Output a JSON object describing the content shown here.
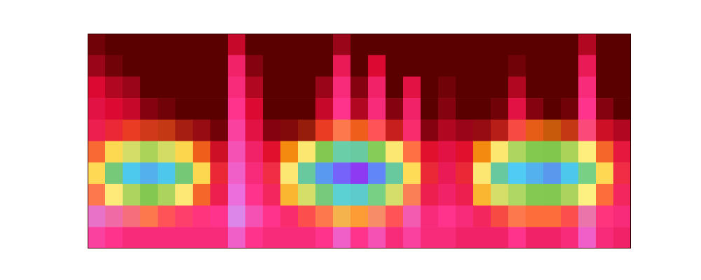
{
  "chart_data": {
    "type": "heatmap",
    "tick_labels": false,
    "spectrogram": [
      [
        0.05,
        0,
        0,
        0,
        0,
        0,
        0,
        0,
        0.25,
        0,
        0,
        0,
        0,
        0,
        0.15,
        0,
        0,
        0,
        0,
        0,
        0,
        0,
        0,
        0,
        0,
        0,
        0,
        0,
        0.2,
        0,
        0
      ],
      [
        0.15,
        0.05,
        0,
        0,
        0,
        0,
        0,
        0,
        0.45,
        0.1,
        0,
        0,
        0,
        0,
        0.4,
        0,
        0.3,
        0,
        0,
        0,
        0,
        0,
        0,
        0,
        0.05,
        0,
        0,
        0,
        0.4,
        0,
        0
      ],
      [
        0.3,
        0.2,
        0.15,
        0,
        0,
        0,
        0,
        0,
        0.5,
        0.2,
        0,
        0,
        0,
        0.15,
        0.5,
        0.1,
        0.45,
        0,
        0.35,
        0,
        0.05,
        0,
        0,
        0,
        0.2,
        0,
        0,
        0,
        0.5,
        0,
        0
      ],
      [
        0.35,
        0.3,
        0.25,
        0.1,
        0.05,
        0,
        0,
        0,
        0.55,
        0.3,
        0,
        0,
        0,
        0.25,
        0.55,
        0.2,
        0.5,
        0.1,
        0.45,
        0,
        0.1,
        0,
        0,
        0.05,
        0.35,
        0.1,
        0,
        0.05,
        0.55,
        0.1,
        0
      ],
      [
        0.4,
        0.35,
        0.3,
        0.2,
        0.15,
        0.1,
        0.1,
        0.05,
        0.6,
        0.35,
        0.1,
        0.05,
        0.05,
        0.3,
        0.6,
        0.3,
        0.55,
        0.2,
        0.5,
        0.1,
        0.2,
        0.15,
        0.1,
        0.15,
        0.45,
        0.25,
        0.1,
        0.15,
        0.6,
        0.25,
        0.2
      ],
      [
        0.45,
        0.4,
        0.35,
        0.3,
        0.3,
        0.3,
        0.3,
        0.25,
        0.65,
        0.45,
        0.3,
        0.3,
        0.3,
        0.4,
        0.65,
        0.45,
        0.6,
        0.35,
        0.55,
        0.3,
        0.35,
        0.3,
        0.3,
        0.3,
        0.5,
        0.35,
        0.3,
        0.3,
        0.65,
        0.4,
        0.35
      ],
      [
        0.5,
        0.45,
        0.4,
        0.35,
        0.35,
        0.35,
        0.35,
        0.35,
        0.7,
        0.5,
        0.4,
        0.35,
        0.35,
        0.45,
        0.7,
        0.5,
        0.65,
        0.4,
        0.6,
        0.35,
        0.4,
        0.35,
        0.35,
        0.35,
        0.55,
        0.4,
        0.35,
        0.35,
        0.7,
        0.45,
        0.4
      ],
      [
        0.6,
        0.5,
        0.45,
        0.4,
        0.4,
        0.4,
        0.4,
        0.4,
        0.75,
        0.55,
        0.45,
        0.4,
        0.4,
        0.5,
        0.75,
        0.55,
        0.7,
        0.45,
        0.65,
        0.4,
        0.45,
        0.4,
        0.4,
        0.4,
        0.6,
        0.45,
        0.4,
        0.4,
        0.75,
        0.5,
        0.45
      ],
      [
        0.8,
        0.75,
        0.7,
        0.6,
        0.55,
        0.55,
        0.55,
        0.55,
        0.85,
        0.65,
        0.55,
        0.5,
        0.5,
        0.6,
        0.85,
        0.6,
        0.75,
        0.55,
        0.7,
        0.5,
        0.55,
        0.5,
        0.45,
        0.45,
        0.6,
        0.5,
        0.5,
        0.5,
        0.8,
        0.55,
        0.5
      ],
      [
        0.6,
        0.55,
        0.5,
        0.5,
        0.5,
        0.5,
        0.5,
        0.5,
        0.7,
        0.55,
        0.5,
        0.5,
        0.5,
        0.55,
        0.7,
        0.55,
        0.65,
        0.5,
        0.6,
        0.5,
        0.5,
        0.45,
        0.45,
        0.45,
        0.55,
        0.45,
        0.45,
        0.5,
        0.7,
        0.5,
        0.45
      ]
    ],
    "attention": [
      [
        0,
        0,
        0,
        0,
        0,
        0,
        0,
        0,
        0,
        0,
        0,
        0,
        0,
        0,
        0,
        0,
        0,
        0,
        0,
        0,
        0,
        0,
        0,
        0,
        0,
        0,
        0,
        0,
        0,
        0,
        0
      ],
      [
        0,
        0,
        0,
        0,
        0,
        0,
        0,
        0,
        0,
        0,
        0,
        0,
        0,
        0,
        0,
        0,
        0,
        0,
        0,
        0,
        0,
        0,
        0,
        0,
        0,
        0,
        0,
        0,
        0,
        0,
        0
      ],
      [
        0,
        0,
        0,
        0,
        0,
        0,
        0,
        0,
        0,
        0,
        0,
        0,
        0,
        0,
        0,
        0,
        0,
        0,
        0,
        0,
        0,
        0,
        0,
        0,
        0,
        0,
        0,
        0,
        0,
        0,
        0
      ],
      [
        0,
        0,
        0,
        0,
        0,
        0,
        0,
        0,
        0,
        0,
        0,
        0,
        0,
        0,
        0,
        0,
        0,
        0,
        0,
        0,
        0,
        0,
        0,
        0,
        0,
        0,
        0,
        0,
        0,
        0,
        0
      ],
      [
        0.05,
        0.1,
        0.15,
        0.15,
        0.15,
        0.1,
        0.05,
        0,
        0,
        0,
        0,
        0.05,
        0.1,
        0.15,
        0.2,
        0.2,
        0.15,
        0.1,
        0.05,
        0,
        0,
        0,
        0.05,
        0.1,
        0.15,
        0.2,
        0.2,
        0.15,
        0.1,
        0.05,
        0
      ],
      [
        0.2,
        0.35,
        0.45,
        0.5,
        0.45,
        0.35,
        0.2,
        0.05,
        0,
        0,
        0.05,
        0.25,
        0.4,
        0.55,
        0.65,
        0.65,
        0.55,
        0.4,
        0.2,
        0.05,
        0,
        0.05,
        0.25,
        0.4,
        0.5,
        0.55,
        0.55,
        0.5,
        0.4,
        0.2,
        0.05
      ],
      [
        0.35,
        0.6,
        0.75,
        0.8,
        0.75,
        0.6,
        0.35,
        0.1,
        0,
        0,
        0.1,
        0.4,
        0.65,
        0.85,
        0.95,
        1,
        0.9,
        0.65,
        0.35,
        0.1,
        0,
        0.1,
        0.4,
        0.65,
        0.75,
        0.8,
        0.85,
        0.75,
        0.6,
        0.35,
        0.1
      ],
      [
        0.2,
        0.4,
        0.5,
        0.55,
        0.5,
        0.4,
        0.2,
        0.05,
        0,
        0,
        0.05,
        0.3,
        0.45,
        0.6,
        0.7,
        0.7,
        0.6,
        0.45,
        0.2,
        0.05,
        0,
        0.05,
        0.3,
        0.45,
        0.5,
        0.55,
        0.55,
        0.5,
        0.4,
        0.2,
        0.05
      ],
      [
        0.05,
        0.1,
        0.15,
        0.2,
        0.15,
        0.1,
        0.05,
        0,
        0,
        0,
        0,
        0.05,
        0.15,
        0.2,
        0.25,
        0.25,
        0.2,
        0.15,
        0.05,
        0,
        0,
        0,
        0.05,
        0.15,
        0.2,
        0.2,
        0.2,
        0.15,
        0.1,
        0.05,
        0
      ],
      [
        0,
        0,
        0,
        0,
        0,
        0,
        0,
        0,
        0,
        0,
        0,
        0,
        0,
        0,
        0,
        0,
        0,
        0,
        0,
        0,
        0,
        0,
        0,
        0,
        0,
        0,
        0,
        0,
        0,
        0,
        0
      ]
    ]
  }
}
